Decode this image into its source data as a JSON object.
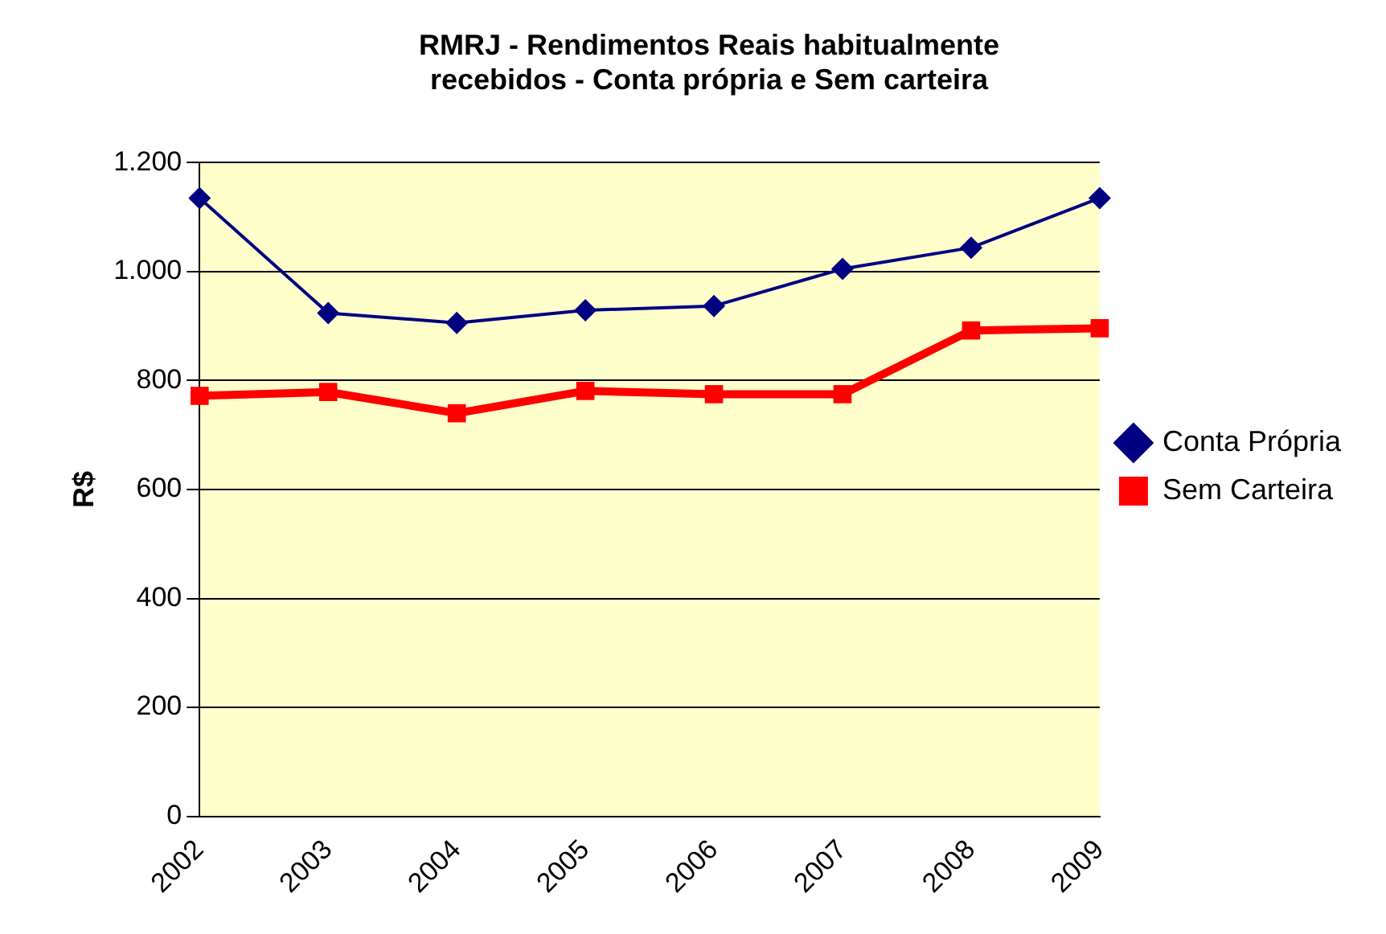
{
  "chart_data": {
    "type": "line",
    "title": "RMRJ - Rendimentos Reais habitualmente recebidos - Conta própria e Sem carteira",
    "ylabel": "R$",
    "categories": [
      "2002",
      "2003",
      "2004",
      "2005",
      "2006",
      "2007",
      "2008",
      "2009"
    ],
    "series": [
      {
        "name": "Conta Própria",
        "color": "#000080",
        "marker": "diamond",
        "values": [
          1135,
          924,
          906,
          929,
          937,
          1005,
          1044,
          1135
        ]
      },
      {
        "name": "Sem Carteira",
        "color": "#ff0000",
        "marker": "square",
        "values": [
          772,
          779,
          740,
          781,
          775,
          775,
          892,
          896
        ]
      }
    ],
    "ylim": [
      0,
      1200
    ],
    "yticks": [
      0,
      200,
      400,
      600,
      800,
      {
        "value": 1000,
        "label": "1.000"
      },
      {
        "value": 1200,
        "label": "1.200"
      }
    ],
    "grid": "y",
    "legend": "right"
  }
}
